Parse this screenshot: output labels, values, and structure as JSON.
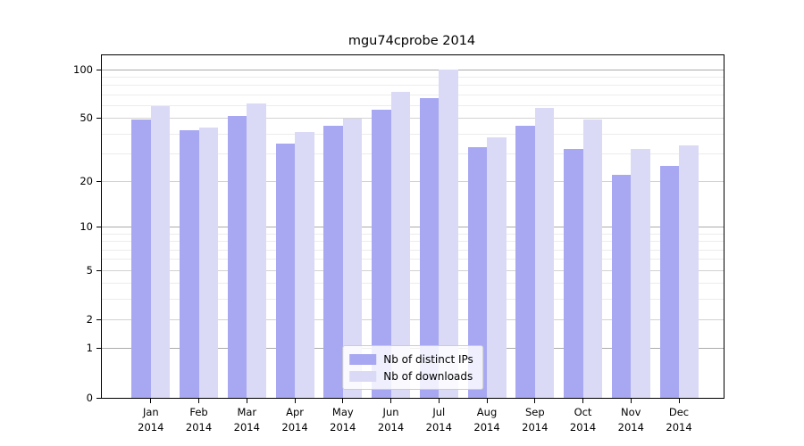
{
  "chart_data": {
    "type": "bar",
    "title": "mgu74cprobe 2014",
    "xlabel": "",
    "ylabel": "",
    "categories": [
      "Jan",
      "Feb",
      "Mar",
      "Apr",
      "May",
      "Jun",
      "Jul",
      "Aug",
      "Sep",
      "Oct",
      "Nov",
      "Dec"
    ],
    "year_label": "2014",
    "series": [
      {
        "name": "Nb of distinct IPs",
        "color": "#a8a8f2",
        "values": [
          49,
          42,
          52,
          35,
          45,
          57,
          67,
          33,
          45,
          32,
          22,
          25
        ]
      },
      {
        "name": "Nb of downloads",
        "color": "#dadaf6",
        "values": [
          60,
          44,
          62,
          41,
          50,
          73,
          100,
          38,
          58,
          49,
          32,
          34
        ]
      }
    ],
    "yscale": "log10(1+y)",
    "yticks": [
      0,
      1,
      2,
      5,
      10,
      20,
      50,
      100
    ],
    "minor_gridlines": [
      3,
      4,
      6,
      7,
      8,
      9,
      30,
      40,
      60,
      70,
      80,
      90
    ],
    "decade_gridlines": [
      1,
      10,
      100
    ],
    "ylim": [
      0,
      123
    ],
    "grid": true,
    "legend_position": "lower center"
  }
}
